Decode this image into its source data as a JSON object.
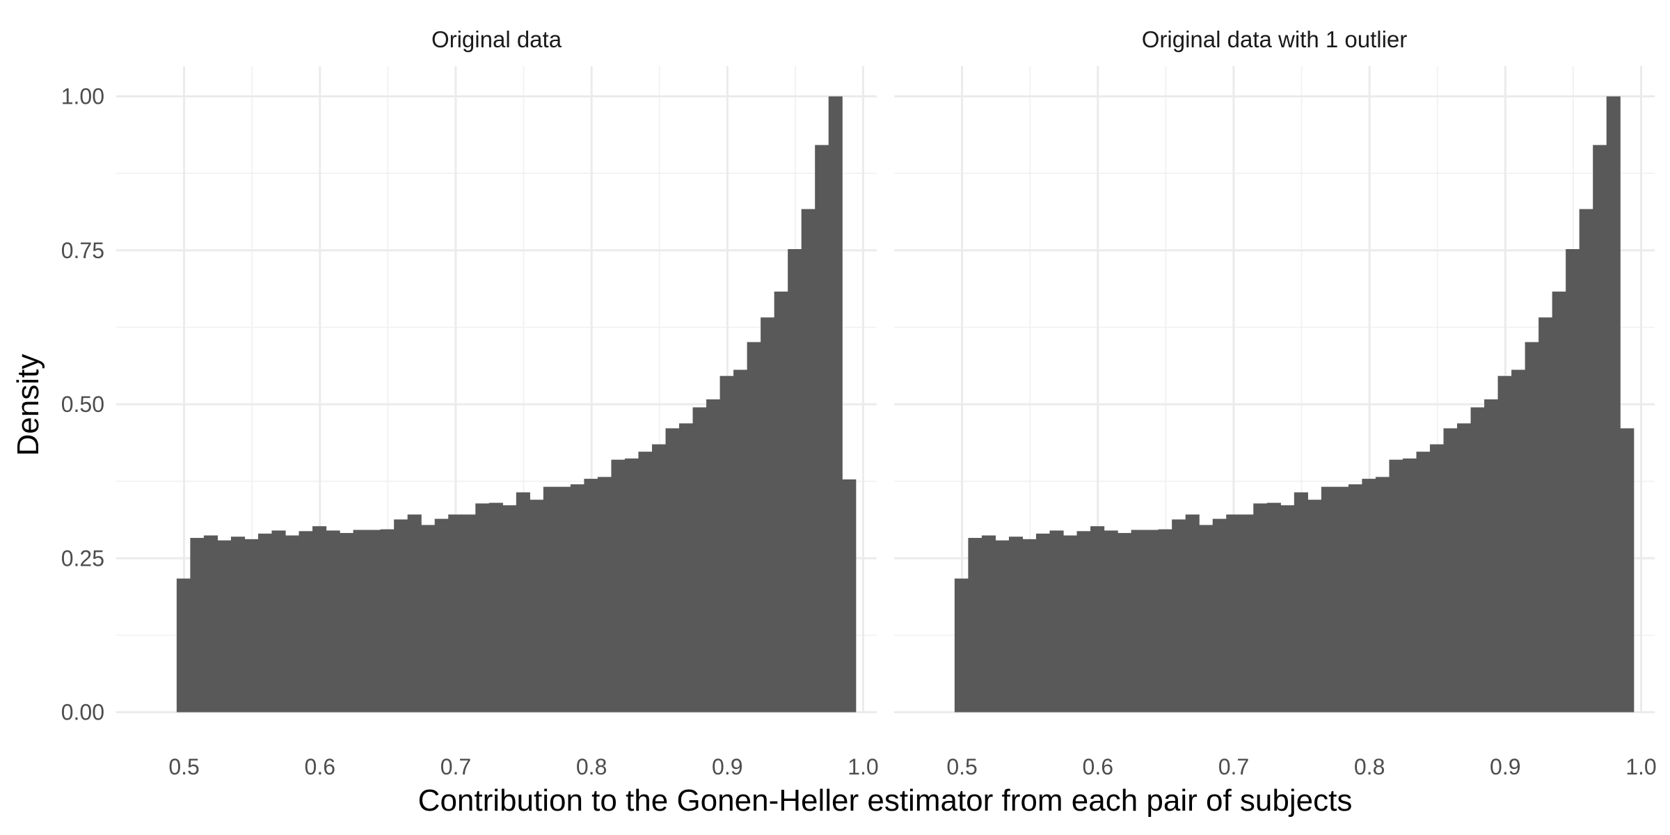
{
  "chart_data": {
    "type": "bar",
    "xlabel": "Contribution to the Gonen-Heller estimator from each pair of subjects",
    "ylabel": "Density",
    "xlim": [
      0.4945,
      1.0055
    ],
    "ylim": [
      0,
      1.0
    ],
    "x_ticks": [
      "0.5",
      "0.6",
      "0.7",
      "0.8",
      "0.9",
      "1.0"
    ],
    "x_tick_values": [
      0.5,
      0.6,
      0.7,
      0.8,
      0.9,
      1.0
    ],
    "y_ticks": [
      "0.00",
      "0.25",
      "0.50",
      "0.75",
      "1.00"
    ],
    "y_tick_values": [
      0,
      0.25,
      0.5,
      0.75,
      1.0
    ],
    "grid": true,
    "bar_color": "#595959",
    "bin_start": 0.4945,
    "bin_width": 0.01,
    "panels": [
      {
        "title": "Original data",
        "values": [
          0.217,
          0.283,
          0.287,
          0.279,
          0.285,
          0.281,
          0.29,
          0.295,
          0.287,
          0.294,
          0.302,
          0.295,
          0.291,
          0.296,
          0.296,
          0.297,
          0.313,
          0.321,
          0.304,
          0.314,
          0.321,
          0.321,
          0.339,
          0.34,
          0.336,
          0.357,
          0.345,
          0.366,
          0.366,
          0.37,
          0.379,
          0.382,
          0.41,
          0.412,
          0.423,
          0.435,
          0.461,
          0.469,
          0.495,
          0.508,
          0.546,
          0.556,
          0.601,
          0.641,
          0.683,
          0.752,
          0.817,
          0.921,
          1.0,
          0.378
        ]
      },
      {
        "title": "Original data with 1 outlier",
        "values": [
          0.217,
          0.283,
          0.287,
          0.279,
          0.285,
          0.281,
          0.29,
          0.295,
          0.287,
          0.294,
          0.302,
          0.295,
          0.291,
          0.296,
          0.296,
          0.297,
          0.313,
          0.321,
          0.304,
          0.314,
          0.321,
          0.321,
          0.339,
          0.34,
          0.336,
          0.357,
          0.345,
          0.366,
          0.366,
          0.37,
          0.379,
          0.382,
          0.41,
          0.412,
          0.423,
          0.435,
          0.461,
          0.469,
          0.495,
          0.508,
          0.546,
          0.556,
          0.601,
          0.641,
          0.683,
          0.752,
          0.817,
          0.921,
          1.0,
          0.461
        ]
      }
    ]
  }
}
